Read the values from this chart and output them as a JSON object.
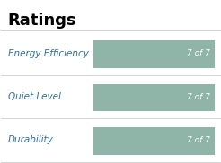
{
  "title": "Ratings",
  "title_fontsize": 13,
  "title_fontweight": "bold",
  "categories": [
    "Energy Efficiency",
    "Quiet Level",
    "Durability"
  ],
  "bar_label": "7 of 7",
  "bar_color": "#8eb5a8",
  "bar_text_color": "#ffffff",
  "label_color": "#2e6da4",
  "divider_color": "#cccccc",
  "background_color": "#ffffff",
  "label_fontsize": 7.5,
  "bar_fontsize": 6.5
}
